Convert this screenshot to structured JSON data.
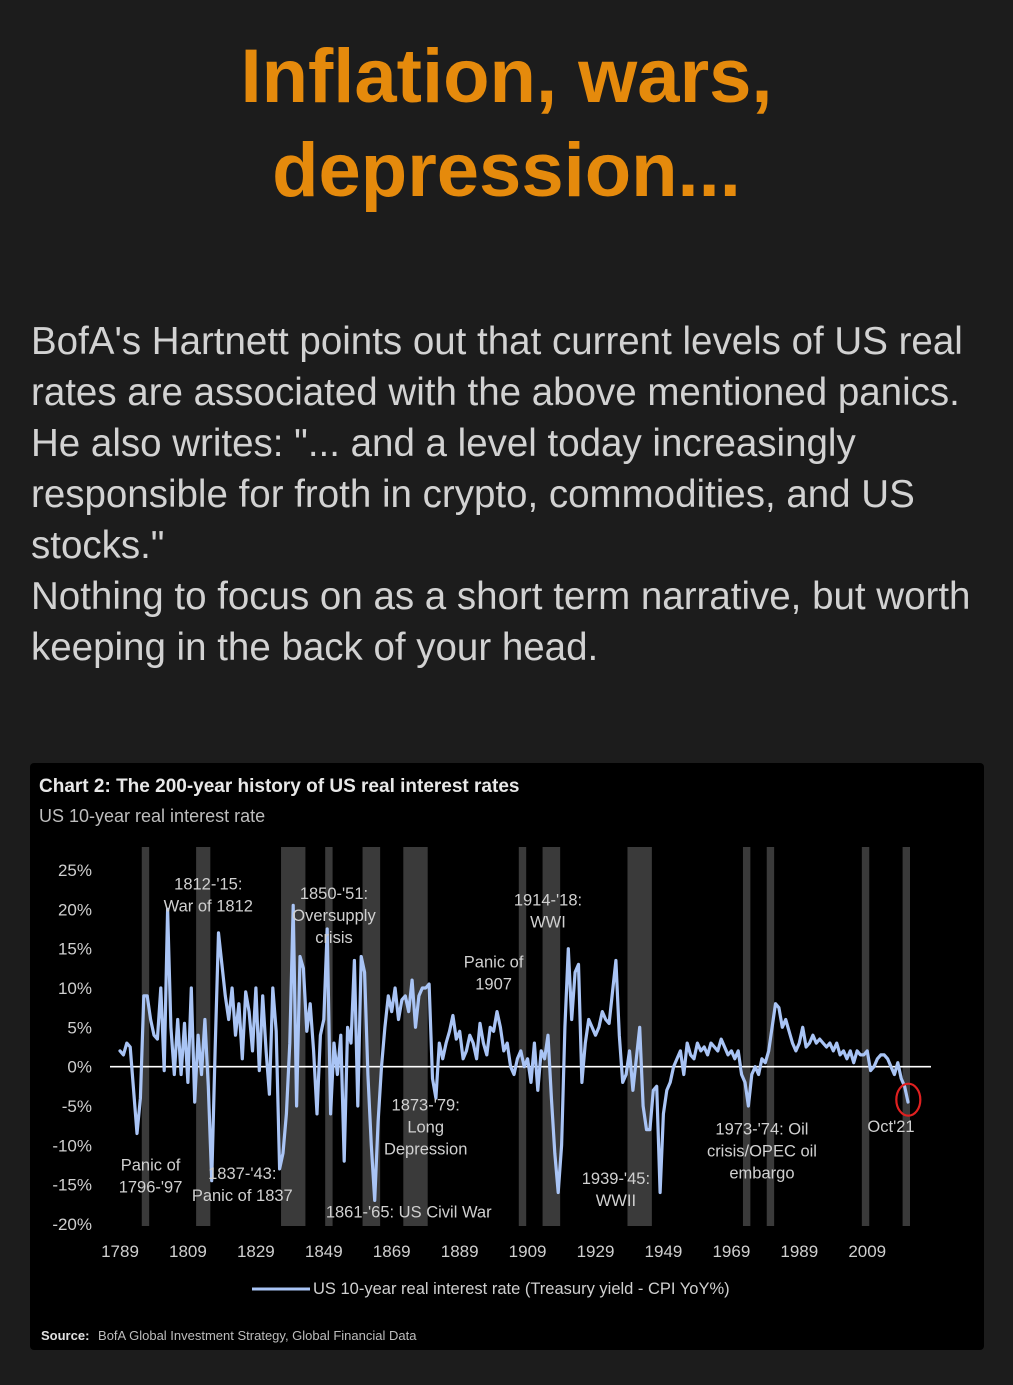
{
  "headline": {
    "line1": "Inflation, wars,",
    "line2": "depression..."
  },
  "body": {
    "paragraph1": "BofA's Hartnett points out that current levels of US real rates are associated with the above mentioned panics. He also writes: \"... and a level today increasingly responsible for froth in crypto, commodities, and US stocks.\"",
    "paragraph2": "Nothing to focus on as a short term narrative, but worth keeping in the back of your head."
  },
  "chart_data": {
    "type": "line",
    "title": "Chart 2: The 200-year history of US real interest rates",
    "subtitle": "US 10-year real interest rate",
    "legend": "US 10-year real interest rate (Treasury yield - CPI YoY%)",
    "source_label": "Source:",
    "source_text": "BofA Global Investment Strategy, Global Financial Data",
    "x_ticks": [
      "1789",
      "1809",
      "1829",
      "1849",
      "1869",
      "1889",
      "1909",
      "1929",
      "1949",
      "1969",
      "1989",
      "2009"
    ],
    "y_ticks": [
      "25%",
      "20%",
      "15%",
      "10%",
      "5%",
      "0%",
      "-5%",
      "-10%",
      "-15%",
      "-20%"
    ],
    "xlim": [
      1789,
      2021
    ],
    "ylim": [
      -20,
      25
    ],
    "line_color": "#a9c4f5",
    "band_color": "#3a3a3a",
    "highlight_color": "#e02020",
    "crisis_bands": [
      {
        "start": 1796,
        "end": 1797
      },
      {
        "start": 1812,
        "end": 1815
      },
      {
        "start": 1837,
        "end": 1843
      },
      {
        "start": 1850,
        "end": 1851
      },
      {
        "start": 1861,
        "end": 1865
      },
      {
        "start": 1873,
        "end": 1879
      },
      {
        "start": 1907,
        "end": 1908
      },
      {
        "start": 1914,
        "end": 1918
      },
      {
        "start": 1939,
        "end": 1945
      },
      {
        "start": 1973,
        "end": 1974
      },
      {
        "start": 1980,
        "end": 1981
      },
      {
        "start": 2008,
        "end": 2009
      },
      {
        "start": 2020,
        "end": 2021
      }
    ],
    "annotations": [
      {
        "lines": [
          "1812-'15:",
          "War of 1812"
        ],
        "x": 1815,
        "y": 22.5
      },
      {
        "lines": [
          "1850-'51:",
          "Oversupply",
          "crisis"
        ],
        "x": 1852,
        "y": 21.3
      },
      {
        "lines": [
          "1914-'18:",
          "WWI"
        ],
        "x": 1915,
        "y": 20.5
      },
      {
        "lines": [
          "Panic of",
          "1907"
        ],
        "x": 1899,
        "y": 12.6
      },
      {
        "lines": [
          "1873-'79:",
          "Long",
          "Depression"
        ],
        "x": 1879,
        "y": -5.6
      },
      {
        "lines": [
          "1973-'74: Oil",
          "crisis/OPEC oil",
          "embargo"
        ],
        "x": 1978,
        "y": -8.6
      },
      {
        "lines": [
          "Oct'21"
        ],
        "x": 2016,
        "y": -8.3
      },
      {
        "lines": [
          "Panic of",
          "1796-'97"
        ],
        "x": 1798,
        "y": -13.2
      },
      {
        "lines": [
          "1837-'43:",
          "Panic of 1837"
        ],
        "x": 1825,
        "y": -14.3
      },
      {
        "lines": [
          "1939-'45:",
          "WWII"
        ],
        "x": 1935,
        "y": -14.9
      },
      {
        "lines": [
          "1861-'65: US Civil War"
        ],
        "x": 1874,
        "y": -19.2
      }
    ],
    "highlight": {
      "label": "Oct'21",
      "x": 2020.8,
      "y": -4.2
    },
    "x": [
      1789,
      1790,
      1791,
      1792,
      1793,
      1794,
      1795,
      1796,
      1797,
      1798,
      1799,
      1800,
      1801,
      1802,
      1803,
      1804,
      1805,
      1806,
      1807,
      1808,
      1809,
      1810,
      1811,
      1812,
      1813,
      1814,
      1815,
      1816,
      1817,
      1818,
      1819,
      1820,
      1821,
      1822,
      1823,
      1824,
      1825,
      1826,
      1827,
      1828,
      1829,
      1830,
      1831,
      1832,
      1833,
      1834,
      1835,
      1836,
      1837,
      1838,
      1839,
      1840,
      1841,
      1842,
      1843,
      1844,
      1845,
      1846,
      1847,
      1848,
      1849,
      1850,
      1851,
      1852,
      1853,
      1854,
      1855,
      1856,
      1857,
      1858,
      1859,
      1860,
      1861,
      1862,
      1863,
      1864,
      1865,
      1866,
      1867,
      1868,
      1869,
      1870,
      1871,
      1872,
      1873,
      1874,
      1875,
      1876,
      1877,
      1878,
      1879,
      1880,
      1881,
      1882,
      1883,
      1884,
      1885,
      1886,
      1887,
      1888,
      1889,
      1890,
      1891,
      1892,
      1893,
      1894,
      1895,
      1896,
      1897,
      1898,
      1899,
      1900,
      1901,
      1902,
      1903,
      1904,
      1905,
      1906,
      1907,
      1908,
      1909,
      1910,
      1911,
      1912,
      1913,
      1914,
      1915,
      1916,
      1917,
      1918,
      1919,
      1920,
      1921,
      1922,
      1923,
      1924,
      1925,
      1926,
      1927,
      1928,
      1929,
      1930,
      1931,
      1932,
      1933,
      1934,
      1935,
      1936,
      1937,
      1938,
      1939,
      1940,
      1941,
      1942,
      1943,
      1944,
      1945,
      1946,
      1947,
      1948,
      1949,
      1950,
      1951,
      1952,
      1953,
      1954,
      1955,
      1956,
      1957,
      1958,
      1959,
      1960,
      1961,
      1962,
      1963,
      1964,
      1965,
      1966,
      1967,
      1968,
      1969,
      1970,
      1971,
      1972,
      1973,
      1974,
      1975,
      1976,
      1977,
      1978,
      1979,
      1980,
      1981,
      1982,
      1983,
      1984,
      1985,
      1986,
      1987,
      1988,
      1989,
      1990,
      1991,
      1992,
      1993,
      1994,
      1995,
      1996,
      1997,
      1998,
      1999,
      2000,
      2001,
      2002,
      2003,
      2004,
      2005,
      2006,
      2007,
      2008,
      2009,
      2010,
      2011,
      2012,
      2013,
      2014,
      2015,
      2016,
      2017,
      2018,
      2019,
      2020,
      2021
    ],
    "y": [
      2,
      1.5,
      3,
      2.5,
      -3,
      -8.5,
      -4,
      9,
      9,
      6,
      4,
      3.5,
      10,
      -0.5,
      20,
      5,
      -1,
      6,
      -1,
      5.5,
      -2,
      10,
      -4.5,
      4,
      -1,
      6,
      -2.5,
      -14.5,
      2,
      17,
      13,
      9,
      6,
      10,
      4,
      8,
      1,
      9.5,
      7,
      2,
      10,
      -0.5,
      9,
      2,
      -3.5,
      10,
      4.5,
      -13,
      -11,
      -6,
      3,
      20.5,
      -5,
      14,
      12.5,
      4.5,
      8,
      2,
      -6,
      4,
      6,
      17.5,
      -6,
      3,
      -1,
      4,
      -12,
      5,
      3,
      13.5,
      -5,
      14,
      12,
      -1,
      -10,
      -17,
      -7,
      0,
      5,
      9,
      7,
      10,
      6,
      8.5,
      9,
      7,
      11,
      5,
      9,
      10,
      10,
      10.5,
      -1.5,
      -4,
      3,
      1,
      3,
      4.5,
      6.5,
      3.5,
      4.5,
      1,
      2,
      4,
      3,
      1,
      5.5,
      3,
      1.5,
      5,
      4.5,
      7,
      5,
      2,
      3,
      0,
      -1,
      1,
      2,
      0,
      1,
      -2,
      3,
      -3,
      2,
      1,
      4,
      -4,
      -11,
      -16,
      -10,
      5,
      15,
      6,
      12,
      13,
      -2,
      3,
      6,
      5,
      4,
      5,
      7,
      6,
      5.5,
      9.5,
      13.5,
      4,
      -2,
      -1,
      2,
      -3,
      1,
      5,
      -5,
      -8,
      -8,
      -3,
      -2.5,
      -16,
      -6,
      -3,
      -2,
      0,
      1,
      2,
      -1,
      3,
      1.5,
      1,
      3,
      2,
      2.5,
      1.5,
      3,
      2.5,
      2,
      3.5,
      2.5,
      1.5,
      2,
      1,
      2,
      -1,
      -2,
      -5,
      -1,
      0,
      -1,
      1,
      0.5,
      2,
      5,
      8,
      7.5,
      5,
      6,
      4.5,
      3,
      2,
      3,
      5,
      2.5,
      3,
      4,
      3,
      3.5,
      3,
      2.5,
      3,
      2,
      3,
      1.5,
      2,
      1,
      2,
      0.5,
      2,
      1.5,
      1.5,
      2,
      -0.5,
      0,
      1,
      1.5,
      1.5,
      1,
      0,
      -1,
      0.5,
      -1.5,
      -2.5,
      -4.5
    ]
  }
}
